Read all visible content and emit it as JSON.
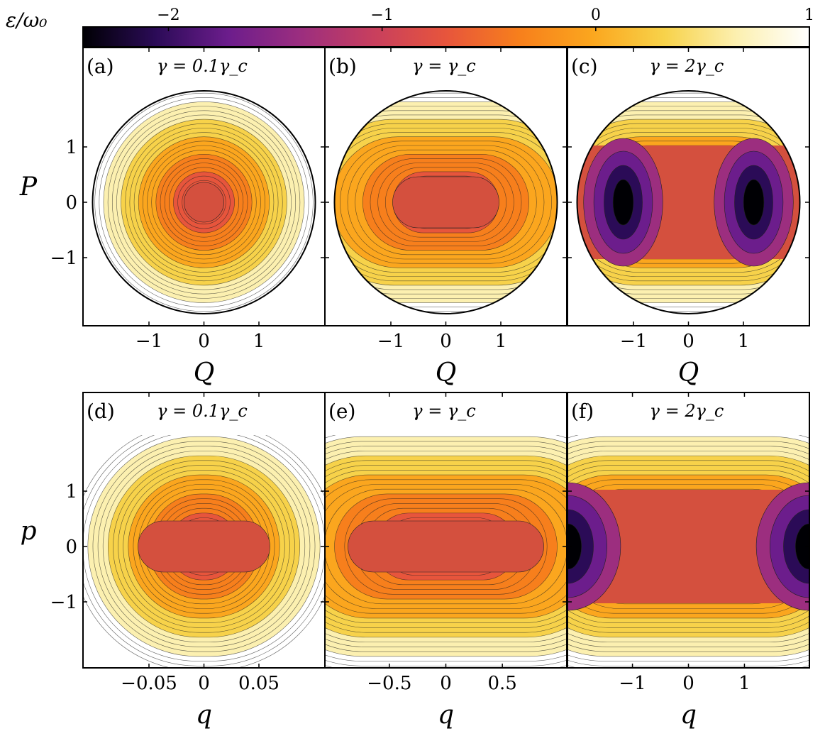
{
  "colorbar": {
    "label": "ε/ω₀",
    "ticks": [
      {
        "label": "−2",
        "value": -2
      },
      {
        "label": "−1",
        "value": -1
      },
      {
        "label": "0",
        "value": 0
      },
      {
        "label": "1",
        "value": 1
      }
    ],
    "range": [
      -2.4,
      1.0
    ],
    "colormap": "inferno",
    "stops": [
      "#000004",
      "#2b0b57",
      "#6c1d8c",
      "#9c2e7f",
      "#c83f5e",
      "#e7553c",
      "#f77f1c",
      "#fba61e",
      "#f7d24a",
      "#fcf0b0",
      "#ffffff"
    ]
  },
  "chart_data": [
    {
      "id": "a",
      "tag": "(a)",
      "title": "γ = 0.1γ_c",
      "type": "heatmap",
      "shape": "disk",
      "xlabel": "Q",
      "ylabel": "P",
      "xticks": [
        "−1",
        "0",
        "1"
      ],
      "yticks": [
        "1",
        "0",
        "−1"
      ],
      "xtick_values": [
        -1,
        0,
        1
      ],
      "ytick_values": [
        1,
        0,
        -1
      ],
      "xlim": [
        -2.2,
        2.2
      ],
      "ylim": [
        -2.2,
        2.2
      ],
      "gamma_ratio": 0.1
    },
    {
      "id": "b",
      "tag": "(b)",
      "title": "γ = γ_c",
      "type": "heatmap",
      "shape": "disk",
      "xlabel": "Q",
      "ylabel": "",
      "xticks": [
        "−1",
        "0",
        "1"
      ],
      "yticks": [],
      "xtick_values": [
        -1,
        0,
        1
      ],
      "ytick_values": [
        1,
        0,
        -1
      ],
      "xlim": [
        -2.2,
        2.2
      ],
      "ylim": [
        -2.2,
        2.2
      ],
      "gamma_ratio": 1
    },
    {
      "id": "c",
      "tag": "(c)",
      "title": "γ = 2γ_c",
      "type": "heatmap",
      "shape": "disk",
      "xlabel": "Q",
      "ylabel": "",
      "xticks": [
        "−1",
        "0",
        "1"
      ],
      "yticks": [],
      "xtick_values": [
        -1,
        0,
        1
      ],
      "ytick_values": [
        1,
        0,
        -1
      ],
      "xlim": [
        -2.2,
        2.2
      ],
      "ylim": [
        -2.2,
        2.2
      ],
      "gamma_ratio": 2
    },
    {
      "id": "d",
      "tag": "(d)",
      "title": "γ = 0.1γ_c",
      "type": "heatmap",
      "shape": "rect",
      "xlabel": "q",
      "ylabel": "p",
      "xticks": [
        "−0.05",
        "0",
        "0.05"
      ],
      "yticks": [
        "1",
        "0",
        "−1"
      ],
      "xtick_values": [
        -0.05,
        0,
        0.05
      ],
      "ytick_values": [
        1,
        0,
        -1
      ],
      "xlim": [
        -0.11,
        0.11
      ],
      "ylim": [
        -2.2,
        2.2
      ],
      "gamma_ratio": 0.1
    },
    {
      "id": "e",
      "tag": "(e)",
      "title": "γ = γ_c",
      "type": "heatmap",
      "shape": "rect",
      "xlabel": "q",
      "ylabel": "",
      "xticks": [
        "−0.5",
        "0",
        "0.5"
      ],
      "yticks": [],
      "xtick_values": [
        -0.5,
        0,
        0.5
      ],
      "ytick_values": [
        1,
        0,
        -1
      ],
      "xlim": [
        -1.07,
        1.07
      ],
      "ylim": [
        -2.2,
        2.2
      ],
      "gamma_ratio": 1
    },
    {
      "id": "f",
      "tag": "(f)",
      "title": "γ = 2γ_c",
      "type": "heatmap",
      "shape": "rect",
      "xlabel": "q",
      "ylabel": "",
      "xticks": [
        "−1",
        "0",
        "1"
      ],
      "yticks": [],
      "xtick_values": [
        -1,
        0,
        1
      ],
      "ytick_values": [
        1,
        0,
        -1
      ],
      "xlim": [
        -2.16,
        2.16
      ],
      "ylim": [
        -2.2,
        2.2
      ],
      "gamma_ratio": 2
    }
  ]
}
